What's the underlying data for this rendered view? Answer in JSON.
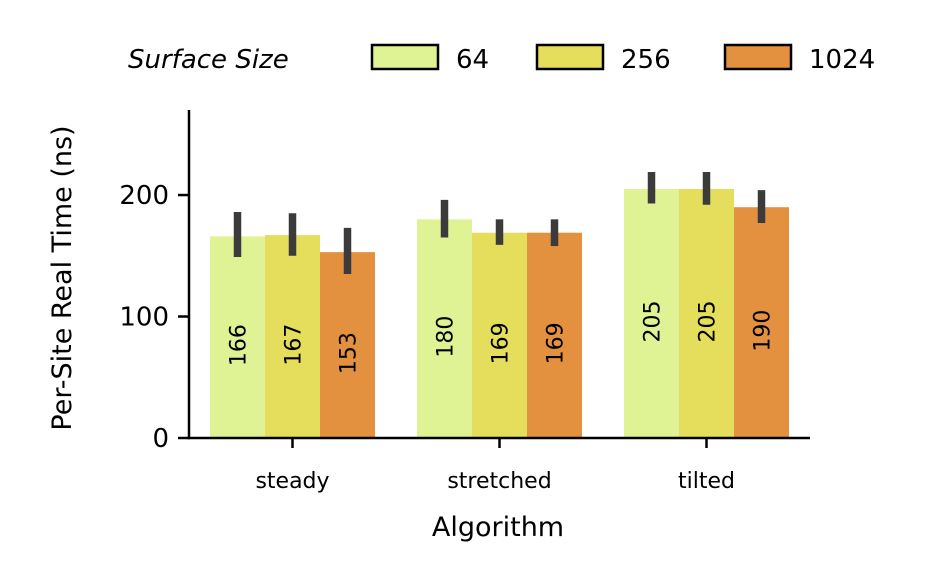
{
  "chart_data": {
    "type": "bar",
    "xlabel": "Algorithm",
    "ylabel": "Per-Site Real Time (ns)",
    "ylim": [
      0,
      270
    ],
    "yticks": [
      0,
      100,
      200
    ],
    "grid": false,
    "categories": [
      "steady",
      "stretched",
      "tilted"
    ],
    "legend": {
      "title": "Surface Size",
      "placement": "top"
    },
    "series": [
      {
        "name": "64",
        "color": "#e0f394",
        "values": [
          166,
          180,
          205
        ],
        "error_low": [
          149,
          165,
          193
        ],
        "error_high": [
          186,
          196,
          219
        ],
        "labels": [
          "166",
          "180",
          "205"
        ]
      },
      {
        "name": "256",
        "color": "#e5dd5c",
        "values": [
          167,
          169,
          205
        ],
        "error_low": [
          150,
          159,
          192
        ],
        "error_high": [
          185,
          180,
          219
        ],
        "labels": [
          "167",
          "169",
          "205"
        ]
      },
      {
        "name": "1024",
        "color": "#e4913f",
        "values": [
          153,
          169,
          190
        ],
        "error_low": [
          135,
          158,
          177
        ],
        "error_high": [
          173,
          180,
          204
        ],
        "labels": [
          "153",
          "169",
          "190"
        ]
      }
    ]
  }
}
